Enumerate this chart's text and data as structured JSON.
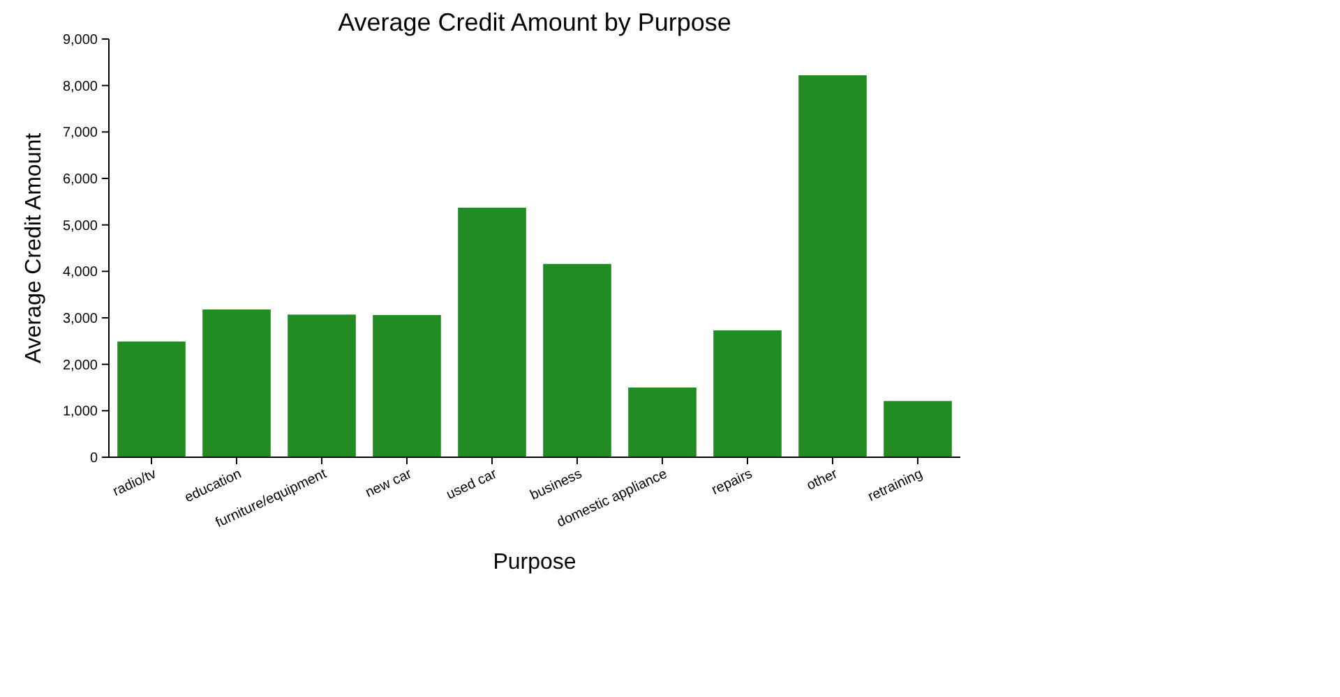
{
  "chart_data": {
    "type": "bar",
    "title": "Average Credit Amount by Purpose",
    "xlabel": "Purpose",
    "ylabel": "Average Credit Amount",
    "categories": [
      "radio/tv",
      "education",
      "furniture/equipment",
      "new car",
      "used car",
      "business",
      "domestic appliance",
      "repairs",
      "other",
      "retraining"
    ],
    "values": [
      2490,
      3180,
      3070,
      3060,
      5370,
      4160,
      1500,
      2730,
      8220,
      1210
    ],
    "color": "#228b22",
    "ylim": [
      0,
      9000
    ],
    "yticks": [
      0,
      {
        "value": 1000,
        "label": "1,000"
      },
      {
        "value": 2000,
        "label": "2,000"
      },
      {
        "value": 3000,
        "label": "3,000"
      },
      {
        "value": 4000,
        "label": "4,000"
      },
      {
        "value": 5000,
        "label": "5,000"
      },
      {
        "value": 6000,
        "label": "6,000"
      },
      {
        "value": 7000,
        "label": "7,000"
      },
      {
        "value": 8000,
        "label": "8,000"
      },
      {
        "value": 9000,
        "label": "9,000"
      }
    ],
    "grid": false
  }
}
